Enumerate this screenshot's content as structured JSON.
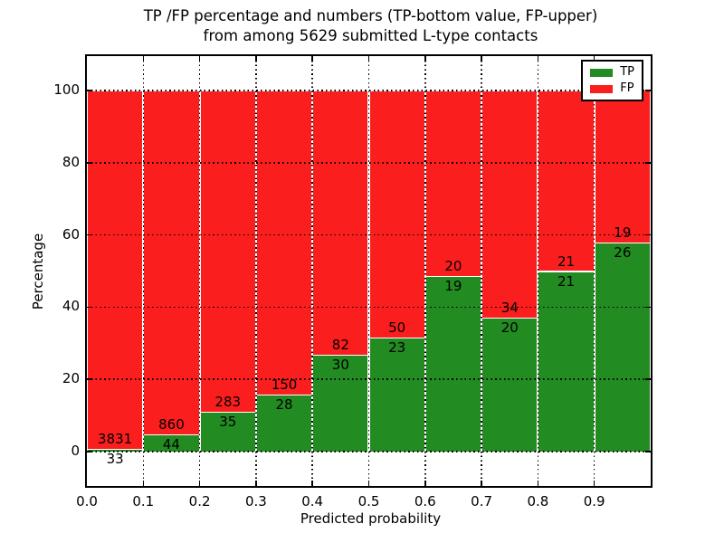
{
  "chart_data": {
    "type": "bar",
    "stacked": true,
    "title_line1": "TP /FP percentage and numbers (TP-bottom value, FP-upper)",
    "title_line2": "from among 5629 submitted L-type contacts",
    "xlabel": "Predicted probability",
    "ylabel": "Percentage",
    "xlim": [
      0.0,
      1.0
    ],
    "ylim": [
      -9.5,
      109.5
    ],
    "grid": "dotted",
    "bin_width": 0.1,
    "x_tick_values": [
      0.0,
      0.1,
      0.2,
      0.3,
      0.4,
      0.5,
      0.6,
      0.7,
      0.8,
      0.9
    ],
    "x_tick_labels": [
      "0.0",
      "0.1",
      "0.2",
      "0.3",
      "0.4",
      "0.5",
      "0.6",
      "0.7",
      "0.8",
      "0.9"
    ],
    "y_tick_values": [
      0,
      20,
      40,
      60,
      80,
      100
    ],
    "y_tick_labels": [
      "0",
      "20",
      "40",
      "60",
      "80",
      "100"
    ],
    "categories": [
      "0.0-0.1",
      "0.1-0.2",
      "0.2-0.3",
      "0.3-0.4",
      "0.4-0.5",
      "0.5-0.6",
      "0.6-0.7",
      "0.7-0.8",
      "0.8-0.9",
      "0.9-1.0"
    ],
    "series": [
      {
        "name": "TP",
        "color": "#228b22",
        "values": [
          33,
          44,
          35,
          28,
          30,
          23,
          19,
          20,
          21,
          26
        ]
      },
      {
        "name": "FP",
        "color": "#fb1e1e",
        "values": [
          3831,
          860,
          283,
          150,
          82,
          50,
          20,
          34,
          21,
          19
        ]
      }
    ],
    "tp_percent": [
      0.85,
      4.87,
      11.01,
      15.73,
      26.79,
      31.51,
      48.72,
      37.04,
      50.0,
      57.78
    ],
    "total_contacts": 5629,
    "legend": {
      "position": "upper right",
      "entries": [
        {
          "label": "TP",
          "color": "#228b22"
        },
        {
          "label": "FP",
          "color": "#fb1e1e"
        }
      ]
    },
    "colors": {
      "axis": "#000000",
      "background": "#ffffff",
      "bar_edge": "#ffffff"
    }
  }
}
